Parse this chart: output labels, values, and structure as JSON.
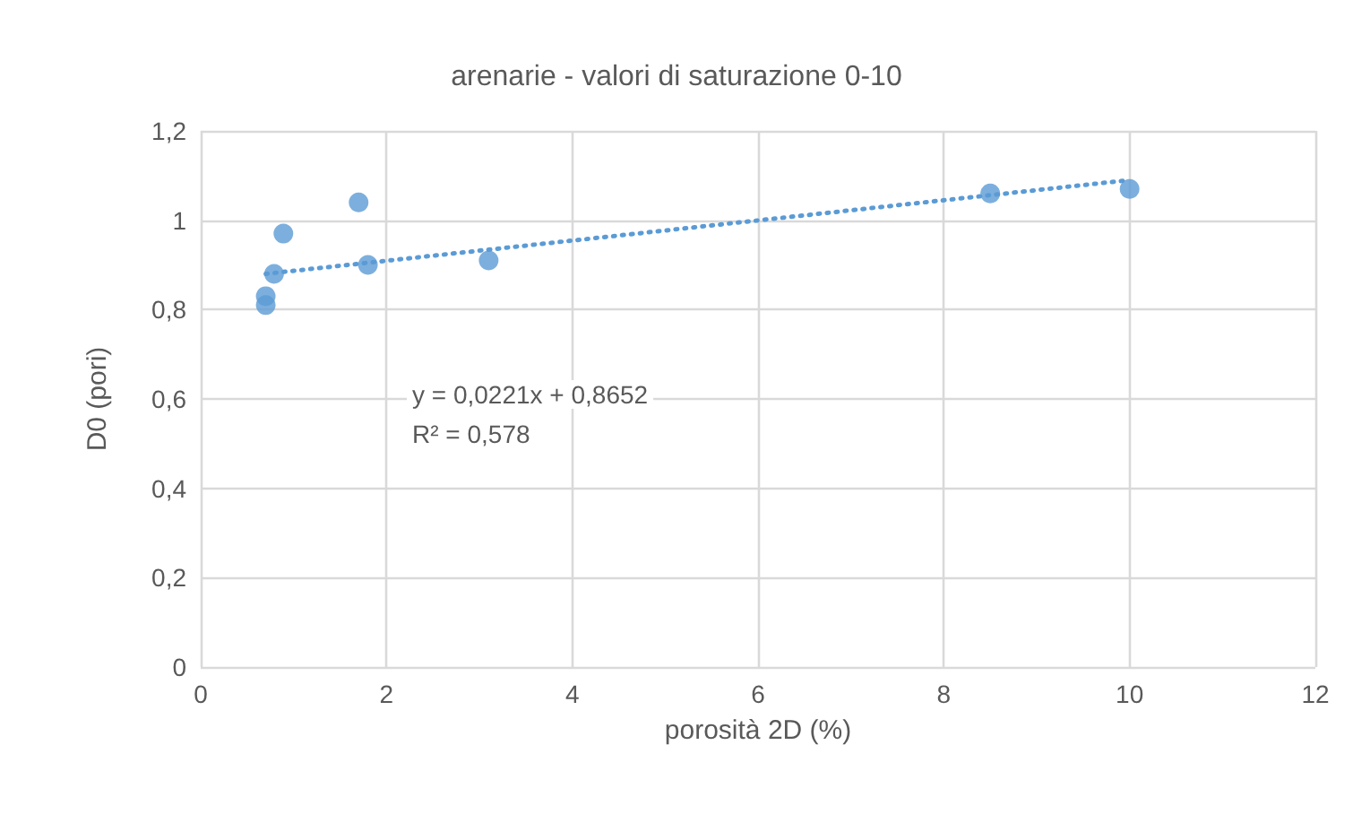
{
  "chart_data": {
    "type": "scatter",
    "title": "arenarie - valori di saturazione 0-10",
    "xlabel": "porosità 2D (%)",
    "ylabel": "D0 (pori)",
    "series": [
      {
        "color": "#5b9bd5",
        "marker": "circle",
        "x": [
          0.7,
          0.7,
          0.79,
          0.89,
          1.7,
          1.8,
          3.1,
          8.5,
          10
        ],
        "values": [
          0.83,
          0.81,
          0.88,
          0.97,
          1.04,
          0.9,
          0.91,
          1.06,
          1.07
        ]
      },
      {
        "type": "line",
        "color": "#5b9bd5",
        "marker": "none",
        "line_style": "dotted",
        "x": [
          0.7,
          10
        ],
        "values": [
          0.88,
          1.09
        ]
      }
    ],
    "annotations": [
      "y = 0,0221x + 0,8652",
      "R² = 0,578"
    ],
    "xlim": [
      0,
      12
    ],
    "xticks": [
      0,
      2,
      4,
      6,
      8,
      10,
      12
    ],
    "ylim": [
      0,
      1.2
    ],
    "yticks": [
      0,
      {
        "value": 0.2,
        "label": "0,2"
      },
      {
        "value": 0.4,
        "label": "0,4"
      },
      {
        "value": 0.6,
        "label": "0,6"
      },
      {
        "value": 0.8,
        "label": "0,8"
      },
      1,
      {
        "value": 1.2,
        "label": "1,2"
      }
    ],
    "grid": true
  }
}
